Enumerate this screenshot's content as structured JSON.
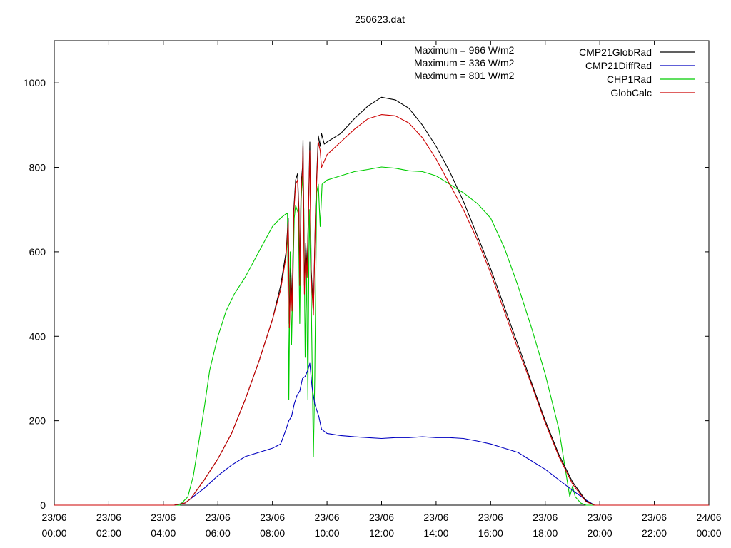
{
  "chart_data": {
    "type": "line",
    "title": "250623.dat",
    "xlabel": "",
    "ylabel": "",
    "xlim": [
      0,
      24
    ],
    "ylim": [
      0,
      1100
    ],
    "yticks": [
      0,
      200,
      400,
      600,
      800,
      1000
    ],
    "xticks": [
      {
        "x": 0,
        "label1": "23/06",
        "label2": "00:00"
      },
      {
        "x": 2,
        "label1": "23/06",
        "label2": "02:00"
      },
      {
        "x": 4,
        "label1": "23/06",
        "label2": "04:00"
      },
      {
        "x": 6,
        "label1": "23/06",
        "label2": "06:00"
      },
      {
        "x": 8,
        "label1": "23/06",
        "label2": "08:00"
      },
      {
        "x": 10,
        "label1": "23/06",
        "label2": "10:00"
      },
      {
        "x": 12,
        "label1": "23/06",
        "label2": "12:00"
      },
      {
        "x": 14,
        "label1": "23/06",
        "label2": "14:00"
      },
      {
        "x": 16,
        "label1": "23/06",
        "label2": "16:00"
      },
      {
        "x": 18,
        "label1": "23/06",
        "label2": "18:00"
      },
      {
        "x": 20,
        "label1": "23/06",
        "label2": "20:00"
      },
      {
        "x": 22,
        "label1": "23/06",
        "label2": "22:00"
      },
      {
        "x": 24,
        "label1": "24/06",
        "label2": "00:00"
      }
    ],
    "grid": false,
    "legend_position": "top-right",
    "annotations": [
      "Maximum = 966 W/m2",
      "Maximum = 336 W/m2",
      "Maximum = 801 W/m2"
    ],
    "series": [
      {
        "name": "CMP21GlobRad",
        "color": "#000000",
        "points": [
          [
            0,
            0
          ],
          [
            4.4,
            0
          ],
          [
            4.8,
            5
          ],
          [
            5.0,
            15
          ],
          [
            5.5,
            60
          ],
          [
            6.0,
            110
          ],
          [
            6.5,
            170
          ],
          [
            7.0,
            250
          ],
          [
            7.5,
            340
          ],
          [
            8.0,
            440
          ],
          [
            8.3,
            520
          ],
          [
            8.5,
            600
          ],
          [
            8.58,
            680
          ],
          [
            8.62,
            430
          ],
          [
            8.67,
            560
          ],
          [
            8.72,
            480
          ],
          [
            8.78,
            700
          ],
          [
            8.85,
            770
          ],
          [
            8.92,
            785
          ],
          [
            8.97,
            700
          ],
          [
            9.0,
            540
          ],
          [
            9.05,
            760
          ],
          [
            9.1,
            800
          ],
          [
            9.12,
            865
          ],
          [
            9.17,
            520
          ],
          [
            9.22,
            620
          ],
          [
            9.27,
            560
          ],
          [
            9.32,
            700
          ],
          [
            9.37,
            860
          ],
          [
            9.42,
            560
          ],
          [
            9.5,
            460
          ],
          [
            9.58,
            700
          ],
          [
            9.63,
            790
          ],
          [
            9.68,
            875
          ],
          [
            9.75,
            850
          ],
          [
            9.8,
            880
          ],
          [
            9.9,
            855
          ],
          [
            10.0,
            860
          ],
          [
            10.5,
            880
          ],
          [
            11.0,
            915
          ],
          [
            11.5,
            945
          ],
          [
            12.0,
            966
          ],
          [
            12.5,
            960
          ],
          [
            13.0,
            940
          ],
          [
            13.5,
            900
          ],
          [
            14.0,
            850
          ],
          [
            14.5,
            790
          ],
          [
            15.0,
            720
          ],
          [
            15.5,
            640
          ],
          [
            16.0,
            560
          ],
          [
            16.5,
            470
          ],
          [
            17.0,
            380
          ],
          [
            17.5,
            290
          ],
          [
            18.0,
            200
          ],
          [
            18.5,
            120
          ],
          [
            19.0,
            55
          ],
          [
            19.5,
            10
          ],
          [
            19.8,
            0
          ],
          [
            24,
            0
          ]
        ]
      },
      {
        "name": "CMP21DiffRad",
        "color": "#0000c0",
        "points": [
          [
            0,
            0
          ],
          [
            4.4,
            0
          ],
          [
            4.8,
            5
          ],
          [
            5.0,
            15
          ],
          [
            5.5,
            40
          ],
          [
            6.0,
            70
          ],
          [
            6.5,
            95
          ],
          [
            7.0,
            115
          ],
          [
            7.5,
            125
          ],
          [
            8.0,
            135
          ],
          [
            8.3,
            145
          ],
          [
            8.5,
            180
          ],
          [
            8.6,
            200
          ],
          [
            8.7,
            210
          ],
          [
            8.8,
            240
          ],
          [
            8.9,
            260
          ],
          [
            9.0,
            270
          ],
          [
            9.1,
            300
          ],
          [
            9.2,
            305
          ],
          [
            9.3,
            320
          ],
          [
            9.37,
            336
          ],
          [
            9.45,
            280
          ],
          [
            9.55,
            240
          ],
          [
            9.7,
            210
          ],
          [
            9.8,
            180
          ],
          [
            10.0,
            170
          ],
          [
            10.5,
            165
          ],
          [
            11.0,
            162
          ],
          [
            11.5,
            160
          ],
          [
            12.0,
            158
          ],
          [
            12.5,
            160
          ],
          [
            13.0,
            160
          ],
          [
            13.5,
            162
          ],
          [
            14.0,
            160
          ],
          [
            14.5,
            160
          ],
          [
            15.0,
            158
          ],
          [
            15.5,
            152
          ],
          [
            16.0,
            145
          ],
          [
            16.5,
            135
          ],
          [
            17.0,
            125
          ],
          [
            17.5,
            105
          ],
          [
            18.0,
            85
          ],
          [
            18.5,
            60
          ],
          [
            19.0,
            35
          ],
          [
            19.5,
            12
          ],
          [
            19.8,
            0
          ],
          [
            24,
            0
          ]
        ]
      },
      {
        "name": "CHP1Rad",
        "color": "#00cc00",
        "points": [
          [
            0,
            0
          ],
          [
            4.6,
            0
          ],
          [
            4.9,
            20
          ],
          [
            5.1,
            70
          ],
          [
            5.3,
            150
          ],
          [
            5.5,
            230
          ],
          [
            5.7,
            320
          ],
          [
            6.0,
            400
          ],
          [
            6.3,
            460
          ],
          [
            6.6,
            500
          ],
          [
            7.0,
            540
          ],
          [
            7.5,
            600
          ],
          [
            8.0,
            660
          ],
          [
            8.3,
            680
          ],
          [
            8.5,
            690
          ],
          [
            8.55,
            690
          ],
          [
            8.6,
            250
          ],
          [
            8.65,
            600
          ],
          [
            8.7,
            380
          ],
          [
            8.8,
            680
          ],
          [
            8.85,
            710
          ],
          [
            8.95,
            690
          ],
          [
            9.0,
            430
          ],
          [
            9.05,
            720
          ],
          [
            9.1,
            780
          ],
          [
            9.15,
            700
          ],
          [
            9.2,
            350
          ],
          [
            9.25,
            560
          ],
          [
            9.3,
            250
          ],
          [
            9.35,
            700
          ],
          [
            9.42,
            500
          ],
          [
            9.5,
            115
          ],
          [
            9.55,
            300
          ],
          [
            9.62,
            740
          ],
          [
            9.68,
            760
          ],
          [
            9.75,
            660
          ],
          [
            9.82,
            760
          ],
          [
            10.0,
            770
          ],
          [
            10.5,
            780
          ],
          [
            11.0,
            790
          ],
          [
            11.5,
            795
          ],
          [
            12.0,
            801
          ],
          [
            12.5,
            798
          ],
          [
            13.0,
            792
          ],
          [
            13.5,
            790
          ],
          [
            14.0,
            780
          ],
          [
            14.5,
            760
          ],
          [
            15.0,
            740
          ],
          [
            15.5,
            715
          ],
          [
            16.0,
            680
          ],
          [
            16.5,
            610
          ],
          [
            17.0,
            520
          ],
          [
            17.5,
            420
          ],
          [
            18.0,
            310
          ],
          [
            18.5,
            180
          ],
          [
            18.8,
            60
          ],
          [
            18.9,
            20
          ],
          [
            19.0,
            45
          ],
          [
            19.1,
            20
          ],
          [
            19.3,
            5
          ],
          [
            19.5,
            0
          ],
          [
            24,
            0
          ]
        ]
      },
      {
        "name": "GlobCalc",
        "color": "#cc0000",
        "points": [
          [
            0,
            0
          ],
          [
            4.4,
            0
          ],
          [
            4.8,
            5
          ],
          [
            5.0,
            15
          ],
          [
            5.5,
            60
          ],
          [
            6.0,
            110
          ],
          [
            6.5,
            170
          ],
          [
            7.0,
            250
          ],
          [
            7.5,
            340
          ],
          [
            8.0,
            440
          ],
          [
            8.3,
            510
          ],
          [
            8.5,
            590
          ],
          [
            8.58,
            670
          ],
          [
            8.62,
            420
          ],
          [
            8.67,
            540
          ],
          [
            8.72,
            460
          ],
          [
            8.78,
            690
          ],
          [
            8.85,
            760
          ],
          [
            8.92,
            770
          ],
          [
            8.97,
            690
          ],
          [
            9.0,
            520
          ],
          [
            9.05,
            740
          ],
          [
            9.1,
            790
          ],
          [
            9.12,
            850
          ],
          [
            9.17,
            500
          ],
          [
            9.22,
            600
          ],
          [
            9.27,
            540
          ],
          [
            9.32,
            690
          ],
          [
            9.37,
            840
          ],
          [
            9.42,
            540
          ],
          [
            9.5,
            450
          ],
          [
            9.58,
            690
          ],
          [
            9.63,
            780
          ],
          [
            9.68,
            860
          ],
          [
            9.75,
            840
          ],
          [
            9.8,
            800
          ],
          [
            9.9,
            815
          ],
          [
            10.0,
            830
          ],
          [
            10.5,
            860
          ],
          [
            11.0,
            890
          ],
          [
            11.5,
            915
          ],
          [
            12.0,
            925
          ],
          [
            12.5,
            922
          ],
          [
            13.0,
            905
          ],
          [
            13.5,
            870
          ],
          [
            14.0,
            820
          ],
          [
            14.5,
            760
          ],
          [
            15.0,
            700
          ],
          [
            15.5,
            630
          ],
          [
            16.0,
            550
          ],
          [
            16.5,
            460
          ],
          [
            17.0,
            370
          ],
          [
            17.5,
            285
          ],
          [
            18.0,
            195
          ],
          [
            18.5,
            115
          ],
          [
            19.0,
            50
          ],
          [
            19.5,
            8
          ],
          [
            19.8,
            0
          ],
          [
            24,
            0
          ]
        ]
      }
    ]
  }
}
